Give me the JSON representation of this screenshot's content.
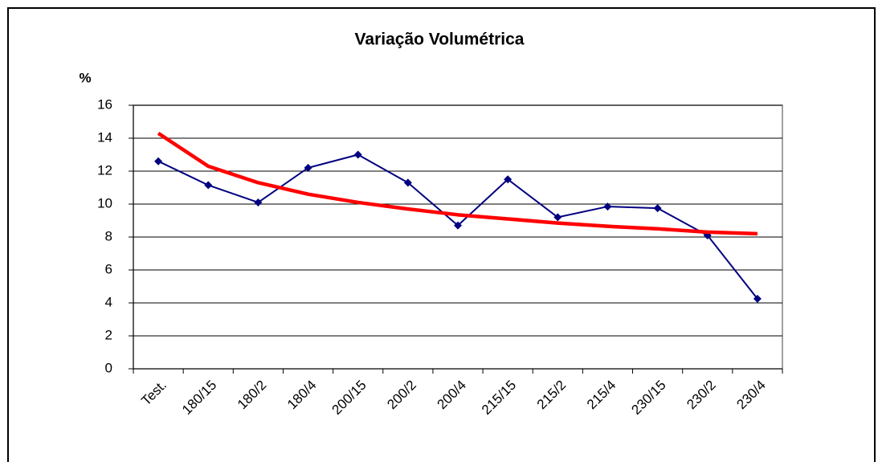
{
  "chart_data": {
    "type": "line",
    "title": "Variação Volumétrica",
    "y_label": "%",
    "categories": [
      "Test.",
      "180/15",
      "180/2",
      "180/4",
      "200/15",
      "200/2",
      "200/4",
      "215/15",
      "215/2",
      "215/4",
      "230/15",
      "230/2",
      "230/4"
    ],
    "series": [
      {
        "color": "#000080",
        "values": [
          12.6,
          11.15,
          10.1,
          12.2,
          13.0,
          11.3,
          8.7,
          11.5,
          9.2,
          9.85,
          9.75,
          8.1,
          4.25
        ]
      },
      {
        "color": "#ff0000",
        "values": [
          14.3,
          12.3,
          11.3,
          10.6,
          10.1,
          9.7,
          9.35,
          9.1,
          8.85,
          8.65,
          8.5,
          8.3,
          8.2
        ]
      }
    ],
    "ylim": [
      0,
      16
    ],
    "yticks": [
      0,
      2,
      4,
      6,
      8,
      10,
      12,
      14,
      16
    ],
    "grid": true
  }
}
